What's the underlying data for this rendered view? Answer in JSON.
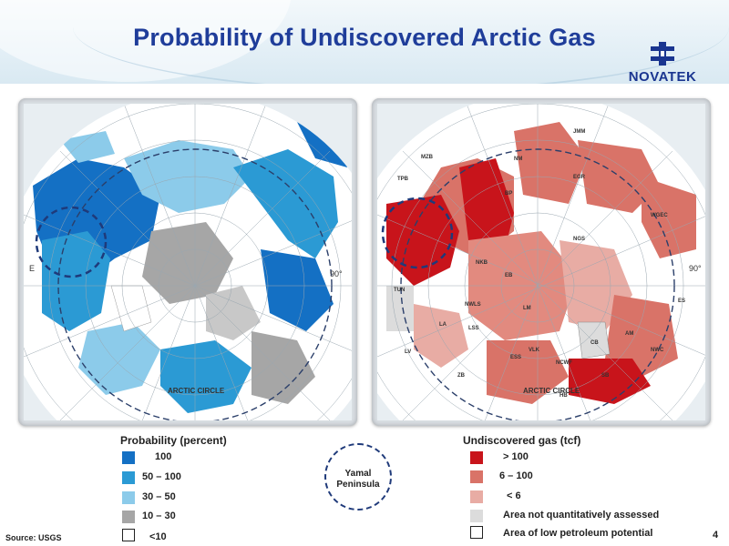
{
  "slide": {
    "title": "Probability of Undiscovered Arctic Gas",
    "source": "Source: USGS",
    "page_number": "4"
  },
  "logo": {
    "text": "NOVATEK",
    "icon": "novatek-logo-mark",
    "color": "#1a3590"
  },
  "left_map": {
    "circle_label": "ARCTIC CIRCLE",
    "degree_labels": [
      "E",
      "90°"
    ]
  },
  "right_map": {
    "circle_label": "ARCTIC CIRCLE",
    "degree_labels": [
      "90°"
    ],
    "region_labels": [
      "JMM",
      "MZB",
      "TPB",
      "NM",
      "EGR",
      "BP",
      "WGEC",
      "NGS",
      "NKB",
      "EB",
      "TUN",
      "NWLS",
      "LM",
      "LA",
      "LSS",
      "ES",
      "AM",
      "CB",
      "NWC",
      "VLK",
      "ZB",
      "ESS",
      "NCWF",
      "HB",
      "LV",
      "SB"
    ]
  },
  "probability_legend": {
    "title": "Probability (percent)",
    "items": [
      {
        "label": "100",
        "color": "#1470c4"
      },
      {
        "label": "50 – 100",
        "color": "#2b9ad4"
      },
      {
        "label": "30 – 50",
        "color": "#8ccbea"
      },
      {
        "label": "10 – 30",
        "color": "#a6a6a6"
      },
      {
        "label": "<10",
        "color": "#ffffff"
      }
    ]
  },
  "gas_legend": {
    "title": "Undiscovered gas (tcf)",
    "items": [
      {
        "label": "> 100",
        "color": "#c8141b"
      },
      {
        "label": "6 – 100",
        "color": "#d97368"
      },
      {
        "label": "< 6",
        "color": "#e8aca4"
      },
      {
        "label": "Area not quantitatively assessed",
        "color": "#dcdcdc"
      },
      {
        "label": "Area of low petroleum potential",
        "color": "#ffffff"
      }
    ]
  },
  "yamal": {
    "label_line1": "Yamal",
    "label_line2": "Peninsula",
    "color": "#1f3a7a"
  }
}
